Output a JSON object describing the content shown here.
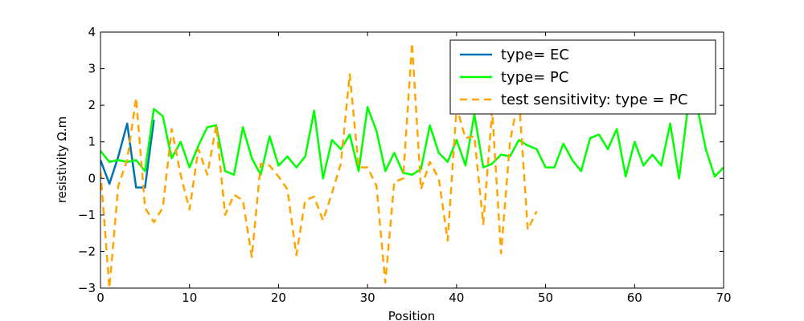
{
  "chart_data": {
    "type": "line",
    "xlabel": "Position",
    "ylabel": "resistivity Ω.m",
    "xlim": [
      0,
      70
    ],
    "ylim": [
      -3,
      4
    ],
    "xticks": [
      "0",
      "10",
      "20",
      "30",
      "40",
      "50",
      "60",
      "70"
    ],
    "yticks": [
      "−3",
      "−2",
      "−1",
      "0",
      "1",
      "2",
      "3",
      "4"
    ],
    "grid": false,
    "legend": "top-right",
    "series": [
      {
        "name": "type= EC",
        "color": "#0072b2",
        "dash": "solid",
        "x": [
          0,
          1,
          2,
          3,
          4,
          5,
          6
        ],
        "y": [
          0.5,
          -0.15,
          0.6,
          1.5,
          -0.25,
          -0.25,
          1.6
        ]
      },
      {
        "name": "type= PC",
        "color": "#00ff00",
        "dash": "solid",
        "x": [
          0,
          1,
          2,
          3,
          4,
          5,
          6,
          7,
          8,
          9,
          10,
          11,
          12,
          13,
          14,
          15,
          16,
          17,
          18,
          19,
          20,
          21,
          22,
          23,
          24,
          25,
          26,
          27,
          28,
          29,
          30,
          31,
          32,
          33,
          34,
          35,
          36,
          37,
          38,
          39,
          40,
          41,
          42,
          43,
          44,
          45,
          46,
          47,
          48,
          49,
          50,
          51,
          52,
          53,
          54,
          55,
          56,
          57,
          58,
          59,
          60,
          61,
          62,
          63,
          64,
          65,
          66,
          67,
          68,
          69,
          70
        ],
        "y": [
          0.75,
          0.45,
          0.5,
          0.45,
          0.5,
          0.2,
          1.9,
          1.7,
          0.55,
          1.0,
          0.3,
          0.9,
          1.4,
          1.45,
          0.2,
          0.1,
          1.4,
          0.55,
          0.1,
          1.15,
          0.35,
          0.6,
          0.3,
          0.6,
          1.85,
          0.0,
          1.05,
          0.8,
          1.2,
          0.2,
          1.95,
          1.3,
          0.2,
          0.7,
          0.15,
          0.1,
          0.25,
          1.45,
          0.7,
          0.45,
          1.05,
          0.35,
          1.75,
          0.3,
          0.4,
          0.65,
          0.6,
          1.05,
          0.9,
          0.8,
          0.3,
          0.3,
          0.95,
          0.5,
          0.2,
          1.1,
          1.2,
          0.8,
          1.35,
          0.05,
          1.0,
          0.35,
          0.65,
          0.35,
          1.5,
          0.0,
          1.95,
          2.0,
          0.8,
          0.05,
          0.3
        ]
      },
      {
        "name": "test sensitivity: type = PC",
        "color": "#ffa500",
        "dash": "dashed",
        "x": [
          0,
          1,
          2,
          3,
          4,
          5,
          6,
          7,
          8,
          9,
          10,
          11,
          12,
          13,
          14,
          15,
          16,
          17,
          18,
          19,
          20,
          21,
          22,
          23,
          24,
          25,
          26,
          27,
          28,
          29,
          30,
          31,
          32,
          33,
          34,
          35,
          36,
          37,
          38,
          39,
          40,
          41,
          42,
          43,
          44,
          45,
          46,
          47,
          48,
          49
        ],
        "y": [
          0.2,
          -3.0,
          -0.2,
          0.5,
          2.2,
          -0.8,
          -1.2,
          -0.8,
          1.35,
          0.1,
          -0.85,
          0.8,
          0.1,
          1.45,
          -1.0,
          -0.45,
          -0.6,
          -2.15,
          0.4,
          0.35,
          0.05,
          -0.3,
          -2.1,
          -0.6,
          -0.5,
          -1.15,
          -0.4,
          0.4,
          2.85,
          0.3,
          0.3,
          -0.2,
          -2.85,
          -0.1,
          0.0,
          3.7,
          -0.3,
          0.45,
          0.0,
          -1.7,
          1.95,
          1.1,
          1.15,
          -1.25,
          1.85,
          -2.05,
          1.0,
          2.25,
          -1.4,
          -0.9
        ]
      }
    ]
  }
}
